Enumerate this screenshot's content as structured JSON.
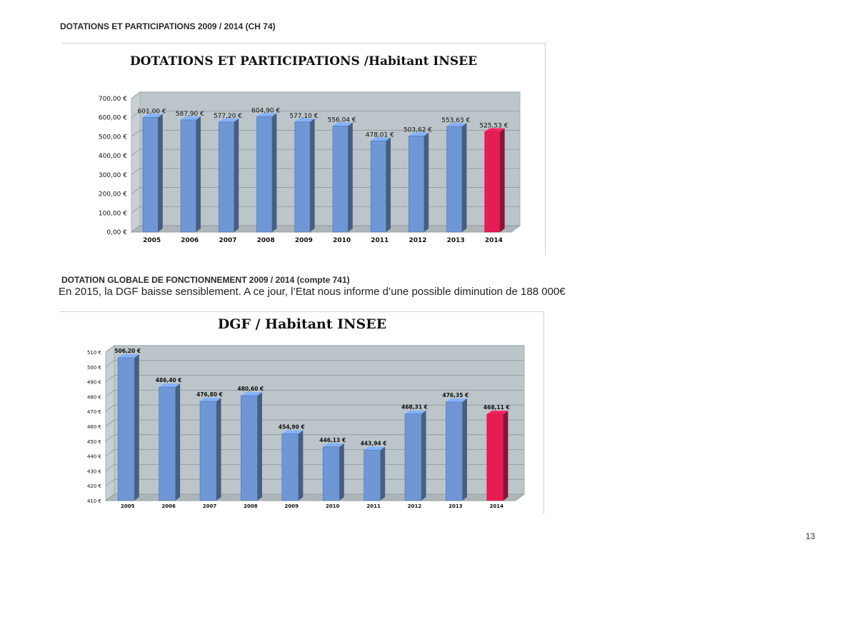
{
  "page": {
    "heading1": "DOTATIONS ET PARTICIPATIONS 2009 / 2014  (CH 74)",
    "heading2": "DOTATION GLOBALE DE FONCTIONNEMENT 2009 / 2014 (compte 741)",
    "note": "En 2015, la DGF baisse sensiblement. A ce jour, l’Etat nous informe d’une possible diminution de 188 000€",
    "page_number": "13"
  },
  "colors": {
    "bar": "#6f97d6",
    "highlight": "#e61c55",
    "plot_wall": "#bcc5c9"
  },
  "chart_data": [
    {
      "type": "bar",
      "title": "DOTATIONS ET PARTICIPATIONS /Habitant INSEE",
      "xlabel": "",
      "ylabel": "",
      "categories": [
        "2005",
        "2006",
        "2007",
        "2008",
        "2009",
        "2010",
        "2011",
        "2012",
        "2013",
        "2014"
      ],
      "values": [
        601.0,
        587.9,
        577.2,
        604.9,
        577.1,
        556.04,
        478.01,
        503.62,
        553.63,
        525.53
      ],
      "data_labels": [
        "601,00 €",
        "587,90 €",
        "577,20 €",
        "604,90 €",
        "577,10 €",
        "556,04 €",
        "478,01 €",
        "503,62 €",
        "553,63 €",
        "525,53 €"
      ],
      "yticks": [
        0,
        100,
        200,
        300,
        400,
        500,
        600,
        700
      ],
      "ytick_labels": [
        "0,00 €",
        "100,00 €",
        "200,00 €",
        "300,00 €",
        "400,00 €",
        "500,00 €",
        "600,00 €",
        "700,00 €"
      ],
      "ylim": [
        0,
        700
      ],
      "highlight_index": 9,
      "grid": true
    },
    {
      "type": "bar",
      "title": "DGF / Habitant INSEE",
      "xlabel": "",
      "ylabel": "",
      "categories": [
        "2005",
        "2006",
        "2007",
        "2008",
        "2009",
        "2010",
        "2011",
        "2012",
        "2013",
        "2014"
      ],
      "values": [
        506.2,
        486.4,
        476.8,
        480.6,
        454.9,
        446.13,
        443.94,
        468.31,
        476.35,
        468.11
      ],
      "data_labels": [
        "506,20 €",
        "486,40 €",
        "476,80 €",
        "480,60 €",
        "454,90 €",
        "446,13 €",
        "443,94 €",
        "468,31 €",
        "476,35 €",
        "468,11 €"
      ],
      "yticks": [
        410,
        420,
        430,
        440,
        450,
        460,
        470,
        480,
        490,
        500,
        510
      ],
      "ytick_labels": [
        "410 €",
        "420 €",
        "430 €",
        "440 €",
        "450 €",
        "460 €",
        "470 €",
        "480 €",
        "490 €",
        "500 €",
        "510 €"
      ],
      "ylim": [
        410,
        510
      ],
      "highlight_index": 9,
      "grid": true
    }
  ]
}
